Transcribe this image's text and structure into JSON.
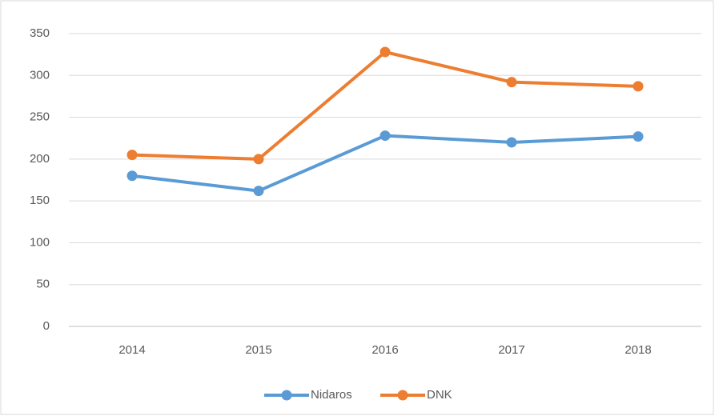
{
  "chart_data": {
    "type": "line",
    "categories": [
      "2014",
      "2015",
      "2016",
      "2017",
      "2018"
    ],
    "series": [
      {
        "name": "Nidaros",
        "color": "#5b9bd5",
        "values": [
          180,
          162,
          228,
          220,
          227
        ]
      },
      {
        "name": "DNK",
        "color": "#ed7d31",
        "values": [
          205,
          200,
          328,
          292,
          287
        ]
      }
    ],
    "ylim": [
      0,
      350
    ],
    "yticks": [
      0,
      50,
      100,
      150,
      200,
      250,
      300,
      350
    ],
    "grid": true,
    "legend": "bottom"
  }
}
